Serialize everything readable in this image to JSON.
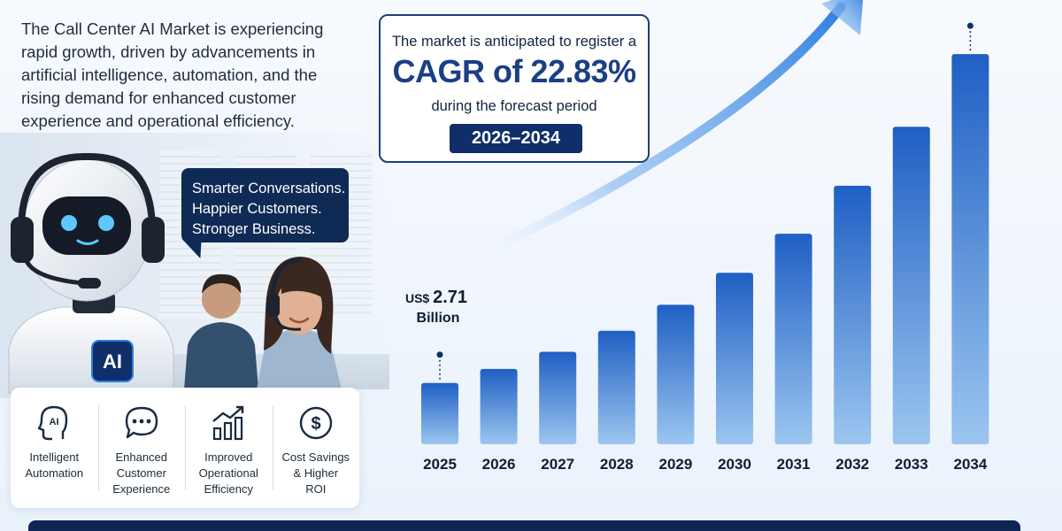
{
  "intro_text": "The Call Center AI Market is experiencing rapid growth, driven by advancements in artificial intelligence, automation, and the rising demand for enhanced customer experience and operational efficiency.",
  "cagr": {
    "line1": "The market is anticipated to register a",
    "value": "CAGR of 22.83%",
    "line3": "during the forecast period",
    "period": "2026–2034"
  },
  "bubble": {
    "lines": [
      "Smarter Conversations.",
      "Happier Customers.",
      "Stronger Business."
    ]
  },
  "robot_badge": "AI",
  "features": [
    {
      "icon": "ai-head-icon",
      "label": "Intelligent\nAutomation"
    },
    {
      "icon": "chat-bubble-icon",
      "label": "Enhanced\nCustomer\nExperience"
    },
    {
      "icon": "growth-chart-icon",
      "label": "Improved\nOperational\nEfficiency"
    },
    {
      "icon": "dollar-coin-icon",
      "label": "Cost Savings\n& Higher\nROI"
    }
  ],
  "colors": {
    "brand_navy": "#0f2e6a",
    "cagr_text": "#1b3f84",
    "bar_top": "#1f5fc4",
    "bar_bottom": "#9cc6f0",
    "arrow": "#2f7fe0"
  },
  "chart_data": {
    "type": "bar",
    "categories": [
      "2025",
      "2026",
      "2027",
      "2028",
      "2029",
      "2030",
      "2031",
      "2032",
      "2033",
      "2034"
    ],
    "values": [
      2.71,
      3.33,
      4.09,
      5.02,
      6.17,
      7.58,
      9.31,
      11.43,
      14.04,
      17.25
    ],
    "first_label": {
      "prefix": "US$",
      "value": "2.71",
      "unit": "Billion"
    },
    "trend_arrow": true,
    "ylim": [
      0,
      18
    ],
    "grid": false,
    "legend": "none"
  }
}
